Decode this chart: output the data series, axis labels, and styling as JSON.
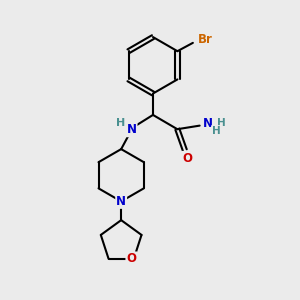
{
  "bg_color": "#ebebeb",
  "bond_color": "#000000",
  "bond_width": 1.5,
  "atom_colors": {
    "C": "#000000",
    "N": "#0000cc",
    "O": "#cc0000",
    "Br": "#cc6600",
    "H": "#4a9090"
  },
  "font_size": 8.5
}
